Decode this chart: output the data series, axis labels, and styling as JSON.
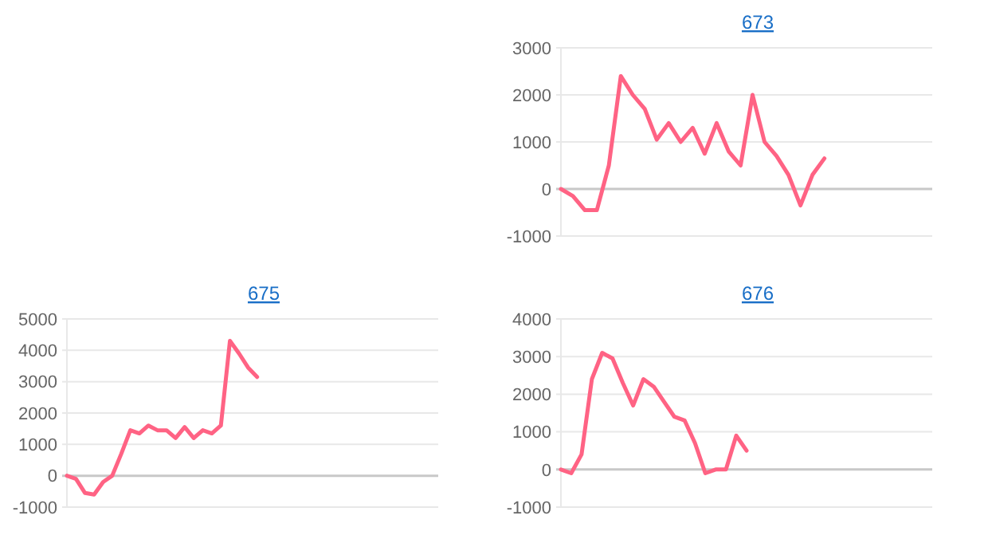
{
  "chart_data": [
    {
      "type": "line",
      "title": "673",
      "categories": [
        null,
        null,
        null,
        null,
        null,
        null,
        null,
        null,
        null,
        null,
        null,
        null,
        null,
        null,
        null,
        null,
        null,
        null,
        null,
        null,
        null,
        null,
        null,
        null,
        null,
        null,
        null,
        null,
        null,
        null,
        null,
        null
      ],
      "series": [
        {
          "color": "#ff6384",
          "values": [
            0,
            -150,
            -450,
            -450,
            500,
            2400,
            2000,
            1700,
            1050,
            1400,
            1000,
            1300,
            750,
            1400,
            800,
            500,
            2000,
            1000,
            700,
            300,
            -350,
            300,
            650,
            null,
            null,
            null,
            null,
            null,
            null,
            null,
            null,
            null
          ]
        }
      ],
      "ylim": [
        -1000,
        3000
      ],
      "yticks": [
        -1000,
        0,
        1000,
        2000,
        3000
      ],
      "grid": "y",
      "marker": "none",
      "line_style": "solid"
    },
    {
      "type": "line",
      "title": "675",
      "categories": [
        null,
        null,
        null,
        null,
        null,
        null,
        null,
        null,
        null,
        null,
        null,
        null,
        null,
        null,
        null,
        null,
        null,
        null,
        null,
        null,
        null,
        null,
        null,
        null,
        null,
        null,
        null,
        null,
        null,
        null,
        null,
        null,
        null,
        null,
        null,
        null,
        null,
        null,
        null,
        null,
        null,
        null
      ],
      "series": [
        {
          "color": "#ff6384",
          "values": [
            0,
            -100,
            -550,
            -600,
            -200,
            0,
            700,
            1450,
            1350,
            1600,
            1450,
            1450,
            1200,
            1550,
            1200,
            1450,
            1350,
            1600,
            4300,
            3900,
            3450,
            3150,
            null,
            null,
            null,
            null,
            null,
            null,
            null,
            null,
            null,
            null,
            null,
            null,
            null,
            null,
            null,
            null,
            null,
            null,
            null,
            null
          ]
        }
      ],
      "ylim": [
        -1000,
        5000
      ],
      "yticks": [
        -1000,
        0,
        1000,
        2000,
        3000,
        4000,
        5000
      ],
      "grid": "y",
      "marker": "none",
      "line_style": "solid"
    },
    {
      "type": "line",
      "title": "676",
      "categories": [
        null,
        null,
        null,
        null,
        null,
        null,
        null,
        null,
        null,
        null,
        null,
        null,
        null,
        null,
        null,
        null,
        null,
        null,
        null,
        null,
        null,
        null,
        null,
        null,
        null,
        null,
        null,
        null,
        null,
        null,
        null,
        null,
        null,
        null,
        null,
        null,
        null
      ],
      "series": [
        {
          "color": "#ff6384",
          "values": [
            0,
            -100,
            400,
            2400,
            3100,
            2950,
            2300,
            1700,
            2400,
            2200,
            1800,
            1400,
            1300,
            700,
            -100,
            0,
            0,
            900,
            500,
            null,
            null,
            null,
            null,
            null,
            null,
            null,
            null,
            null,
            null,
            null,
            null,
            null,
            null,
            null,
            null,
            null,
            null
          ]
        }
      ],
      "ylim": [
        -1000,
        4000
      ],
      "yticks": [
        -1000,
        0,
        1000,
        2000,
        3000,
        4000
      ],
      "grid": "y",
      "marker": "none",
      "line_style": "solid"
    }
  ]
}
